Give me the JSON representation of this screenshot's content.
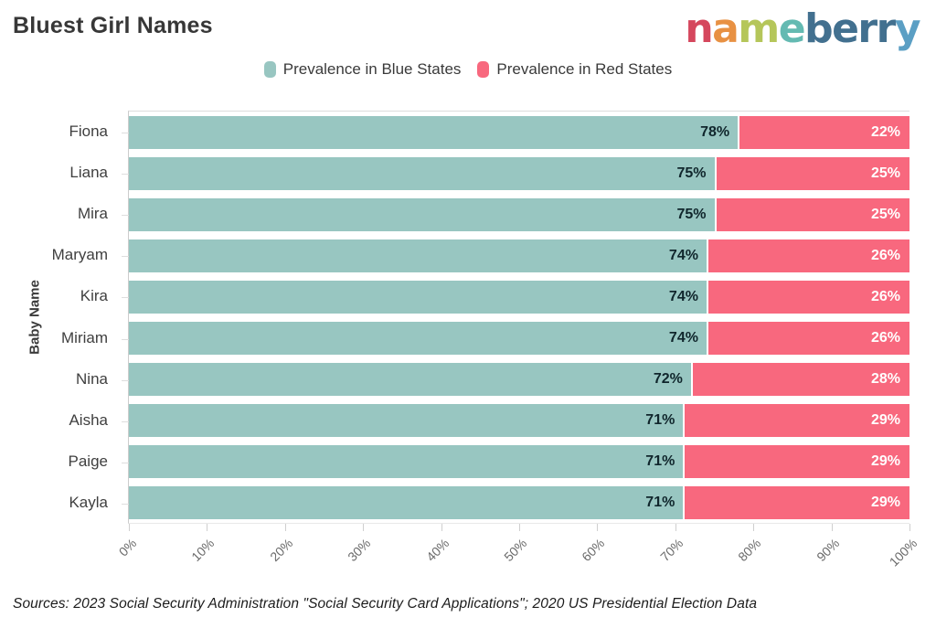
{
  "title": "Bluest Girl Names",
  "logo": {
    "name": "nameberry",
    "letters": [
      {
        "char": "n",
        "color": "#d5475d"
      },
      {
        "char": "a",
        "color": "#e89143"
      },
      {
        "char": "m",
        "color": "#b5c65a"
      },
      {
        "char": "e",
        "color": "#64bab2"
      },
      {
        "char": "b",
        "color": "#42708f"
      },
      {
        "char": "e",
        "color": "#42708f"
      },
      {
        "char": "r",
        "color": "#42708f"
      },
      {
        "char": "r",
        "color": "#42708f"
      },
      {
        "char": "y",
        "color": "#5b9fc4"
      }
    ]
  },
  "legend": [
    {
      "label": "Prevalence in Blue States",
      "color": "#98c6c1"
    },
    {
      "label": "Prevalence in Red States",
      "color": "#f8687e"
    }
  ],
  "chart_data": {
    "type": "bar",
    "orientation": "horizontal",
    "stacked": true,
    "title": "Bluest Girl Names",
    "xlabel": "",
    "ylabel": "Baby Name",
    "categories": [
      "Fiona",
      "Liana",
      "Mira",
      "Maryam",
      "Kira",
      "Miriam",
      "Nina",
      "Aisha",
      "Paige",
      "Kayla"
    ],
    "series": [
      {
        "name": "Prevalence in Blue States",
        "color": "#98c6c1",
        "values": [
          78,
          75,
          75,
          74,
          74,
          74,
          72,
          71,
          71,
          71
        ],
        "labels": [
          "78%",
          "75%",
          "75%",
          "74%",
          "74%",
          "74%",
          "72%",
          "71%",
          "71%",
          "71%"
        ]
      },
      {
        "name": "Prevalence in Red States",
        "color": "#f8687e",
        "values": [
          22,
          25,
          25,
          26,
          26,
          26,
          28,
          29,
          29,
          29
        ],
        "labels": [
          "22%",
          "25%",
          "25%",
          "26%",
          "26%",
          "26%",
          "28%",
          "29%",
          "29%",
          "29%"
        ]
      }
    ],
    "xlim": [
      0,
      100
    ],
    "x_ticks": [
      "0%",
      "10%",
      "20%",
      "30%",
      "40%",
      "50%",
      "60%",
      "70%",
      "80%",
      "90%",
      "100%"
    ],
    "grid": false,
    "legend_position": "top"
  },
  "footer": {
    "sources": "Sources: 2023 Social Security Administration \"Social Security Card Applications\"; 2020 US Presidential Election Data"
  }
}
